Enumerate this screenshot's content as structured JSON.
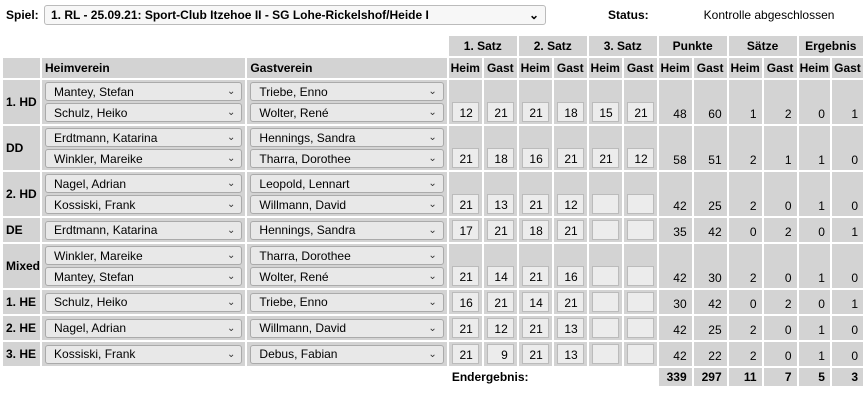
{
  "header": {
    "spiel_label": "Spiel:",
    "spiel_value": "1. RL - 25.09.21:  Sport-Club Itzehoe II - SG Lohe-Rickelshof/Heide I",
    "status_label": "Status:",
    "status_value": "Kontrolle abgeschlossen"
  },
  "columns": {
    "heim": "Heimverein",
    "gast": "Gastverein",
    "groups": [
      "1. Satz",
      "2. Satz",
      "3. Satz",
      "Punkte",
      "Sätze",
      "Ergebnis"
    ],
    "sub_heim": "Heim",
    "sub_gast": "Gast"
  },
  "matches": [
    {
      "label": "1. HD",
      "home": [
        "Mantey, Stefan",
        "Schulz, Heiko"
      ],
      "guest": [
        "Triebe, Enno",
        "Wolter, René"
      ],
      "sets": [
        [
          "12",
          "21"
        ],
        [
          "21",
          "18"
        ],
        [
          "15",
          "21"
        ]
      ],
      "punkte": [
        "48",
        "60"
      ],
      "saetze": [
        "1",
        "2"
      ],
      "ergebnis": [
        "0",
        "1"
      ]
    },
    {
      "label": "DD",
      "home": [
        "Erdtmann, Katarina",
        "Winkler, Mareike"
      ],
      "guest": [
        "Hennings, Sandra",
        "Tharra, Dorothee"
      ],
      "sets": [
        [
          "21",
          "18"
        ],
        [
          "16",
          "21"
        ],
        [
          "21",
          "12"
        ]
      ],
      "punkte": [
        "58",
        "51"
      ],
      "saetze": [
        "2",
        "1"
      ],
      "ergebnis": [
        "1",
        "0"
      ]
    },
    {
      "label": "2. HD",
      "home": [
        "Nagel, Adrian",
        "Kossiski, Frank"
      ],
      "guest": [
        "Leopold, Lennart",
        "Willmann, David"
      ],
      "sets": [
        [
          "21",
          "13"
        ],
        [
          "21",
          "12"
        ],
        [
          "",
          ""
        ]
      ],
      "punkte": [
        "42",
        "25"
      ],
      "saetze": [
        "2",
        "0"
      ],
      "ergebnis": [
        "1",
        "0"
      ]
    },
    {
      "label": "DE",
      "home": [
        "Erdtmann, Katarina"
      ],
      "guest": [
        "Hennings, Sandra"
      ],
      "sets": [
        [
          "17",
          "21"
        ],
        [
          "18",
          "21"
        ],
        [
          "",
          ""
        ]
      ],
      "punkte": [
        "35",
        "42"
      ],
      "saetze": [
        "0",
        "2"
      ],
      "ergebnis": [
        "0",
        "1"
      ]
    },
    {
      "label": "Mixed",
      "home": [
        "Winkler, Mareike",
        "Mantey, Stefan"
      ],
      "guest": [
        "Tharra, Dorothee",
        "Wolter, René"
      ],
      "sets": [
        [
          "21",
          "14"
        ],
        [
          "21",
          "16"
        ],
        [
          "",
          ""
        ]
      ],
      "punkte": [
        "42",
        "30"
      ],
      "saetze": [
        "2",
        "0"
      ],
      "ergebnis": [
        "1",
        "0"
      ]
    },
    {
      "label": "1. HE",
      "home": [
        "Schulz, Heiko"
      ],
      "guest": [
        "Triebe, Enno"
      ],
      "sets": [
        [
          "16",
          "21"
        ],
        [
          "14",
          "21"
        ],
        [
          "",
          ""
        ]
      ],
      "punkte": [
        "30",
        "42"
      ],
      "saetze": [
        "0",
        "2"
      ],
      "ergebnis": [
        "0",
        "1"
      ]
    },
    {
      "label": "2. HE",
      "home": [
        "Nagel, Adrian"
      ],
      "guest": [
        "Willmann, David"
      ],
      "sets": [
        [
          "21",
          "12"
        ],
        [
          "21",
          "13"
        ],
        [
          "",
          ""
        ]
      ],
      "punkte": [
        "42",
        "25"
      ],
      "saetze": [
        "2",
        "0"
      ],
      "ergebnis": [
        "1",
        "0"
      ]
    },
    {
      "label": "3. HE",
      "home": [
        "Kossiski, Frank"
      ],
      "guest": [
        "Debus, Fabian"
      ],
      "sets": [
        [
          "21",
          "9"
        ],
        [
          "21",
          "13"
        ],
        [
          "",
          ""
        ]
      ],
      "punkte": [
        "42",
        "22"
      ],
      "saetze": [
        "2",
        "0"
      ],
      "ergebnis": [
        "1",
        "0"
      ]
    }
  ],
  "total": {
    "label": "Endergebnis:",
    "punkte": [
      "339",
      "297"
    ],
    "saetze": [
      "11",
      "7"
    ],
    "ergebnis": [
      "5",
      "3"
    ]
  }
}
